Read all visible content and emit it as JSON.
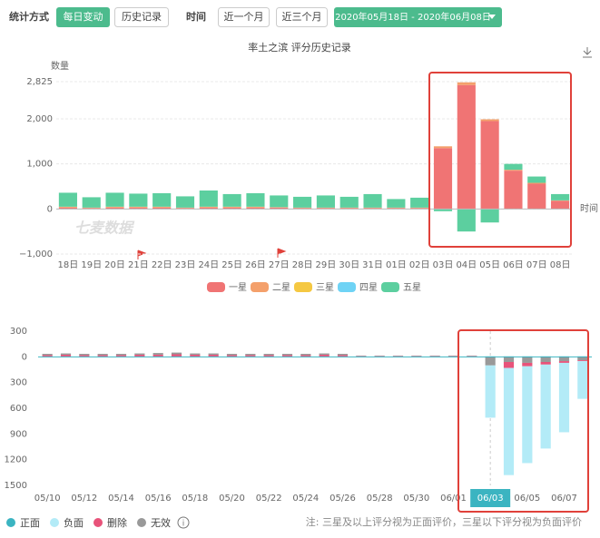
{
  "toolbar": {
    "mode_label": "统计方式",
    "mode_options": [
      "每日变动",
      "历史记录"
    ],
    "time_label": "时间",
    "time_options": [
      "近一个月",
      "近三个月"
    ],
    "date_range": "2020年05月18日 - 2020年06月08日"
  },
  "watermark": "七麦数据",
  "note": "注: 三星及以上评分视为正面评价，三星以下评分视为负面评价",
  "chart_data": [
    {
      "type": "stacked_bar",
      "title": "率土之滨 评分历史记录",
      "y_label": "数量",
      "x_label": "时间",
      "categories": [
        "18日",
        "19日",
        "20日",
        "21日",
        "22日",
        "23日",
        "24日",
        "25日",
        "26日",
        "27日",
        "28日",
        "29日",
        "30日",
        "31日",
        "01日",
        "02日",
        "03日",
        "04日",
        "05日",
        "06日",
        "07日",
        "08日"
      ],
      "series": [
        {
          "name": "一星",
          "color": "#f07474",
          "values": [
            30,
            20,
            30,
            30,
            30,
            20,
            30,
            30,
            30,
            30,
            20,
            20,
            20,
            20,
            20,
            20,
            1350,
            2750,
            1950,
            850,
            560,
            180
          ]
        },
        {
          "name": "二星",
          "color": "#f4a06b",
          "values": [
            20,
            10,
            20,
            20,
            20,
            10,
            20,
            20,
            20,
            10,
            10,
            10,
            10,
            10,
            10,
            10,
            40,
            60,
            40,
            20,
            20,
            10
          ]
        },
        {
          "name": "三星",
          "color": "#f5c842",
          "values": [
            0,
            0,
            0,
            0,
            0,
            0,
            0,
            0,
            0,
            0,
            0,
            0,
            0,
            0,
            0,
            0,
            0,
            0,
            0,
            0,
            0,
            0
          ]
        },
        {
          "name": "四星",
          "color": "#6fd3f5",
          "values": [
            0,
            0,
            0,
            0,
            0,
            0,
            0,
            0,
            0,
            0,
            0,
            0,
            0,
            0,
            0,
            0,
            0,
            0,
            0,
            0,
            0,
            0
          ]
        },
        {
          "name": "五星",
          "color": "#5ccf9f",
          "values": [
            310,
            230,
            310,
            290,
            300,
            250,
            360,
            280,
            300,
            260,
            240,
            270,
            240,
            300,
            190,
            220,
            -50,
            -500,
            -300,
            130,
            140,
            140
          ]
        }
      ],
      "ylim": [
        -1000,
        2825
      ],
      "yticks": [
        {
          "value": -1000,
          "label": "−1,000"
        },
        0,
        {
          "value": 1000,
          "label": "1,000"
        },
        {
          "value": 2000,
          "label": "2,000"
        },
        {
          "value": 2825,
          "label": "2,825"
        }
      ],
      "grid": true
    },
    {
      "type": "stacked_bar",
      "active_category": 24,
      "categories": [
        "05/10",
        null,
        "05/12",
        null,
        "05/14",
        null,
        "05/16",
        null,
        "05/18",
        null,
        "05/20",
        null,
        "05/22",
        null,
        "05/24",
        null,
        "05/26",
        null,
        "05/28",
        null,
        "05/30",
        null,
        "06/01",
        null,
        "06/03",
        null,
        "06/05",
        null,
        "06/07",
        null
      ],
      "series": [
        {
          "name": "正面",
          "color": "#3bb4c1",
          "values": [
            5,
            5,
            5,
            5,
            5,
            5,
            5,
            5,
            5,
            5,
            5,
            5,
            5,
            5,
            5,
            5,
            5,
            5,
            5,
            5,
            5,
            5,
            5,
            5,
            5,
            5,
            5,
            5,
            5,
            5
          ]
        },
        {
          "name": "负面",
          "color": "#b3ebf7",
          "values": [
            0,
            0,
            0,
            0,
            0,
            0,
            0,
            0,
            0,
            0,
            0,
            0,
            0,
            0,
            0,
            0,
            0,
            0,
            0,
            0,
            0,
            0,
            0,
            0,
            -610,
            -1250,
            -1130,
            -980,
            -810,
            -440
          ]
        },
        {
          "name": "删除",
          "color": "#e8537a",
          "values": [
            15,
            20,
            15,
            15,
            15,
            20,
            20,
            25,
            20,
            20,
            15,
            15,
            15,
            15,
            15,
            20,
            15,
            5,
            5,
            5,
            5,
            5,
            5,
            5,
            0,
            -70,
            -40,
            -30,
            -20,
            -10
          ]
        },
        {
          "name": "无效",
          "color": "#999999",
          "values": [
            15,
            15,
            15,
            15,
            15,
            15,
            20,
            20,
            15,
            15,
            15,
            15,
            15,
            15,
            15,
            15,
            15,
            5,
            5,
            5,
            5,
            5,
            5,
            5,
            -100,
            -60,
            -70,
            -60,
            -50,
            -40
          ]
        }
      ],
      "ylim": [
        -1500,
        300
      ],
      "yticks": [
        300,
        0,
        {
          "value": -300,
          "label": "300"
        },
        {
          "value": -600,
          "label": "600"
        },
        {
          "value": -900,
          "label": "900"
        },
        {
          "value": -1200,
          "label": "1200"
        },
        {
          "value": -1500,
          "label": "1500"
        }
      ],
      "grid": false
    }
  ]
}
